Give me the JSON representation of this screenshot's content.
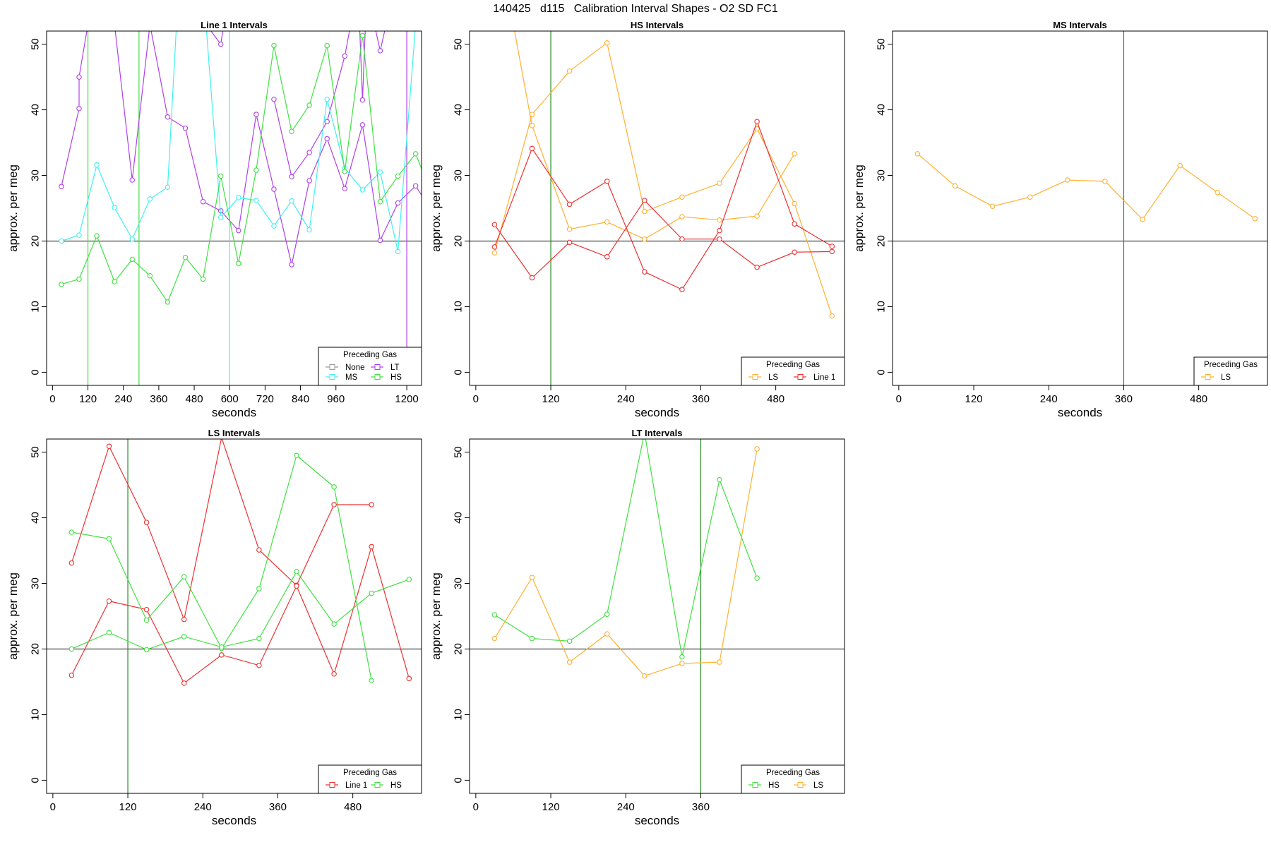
{
  "figure_title": "140425   d115   Calibration Interval Shapes - O2 SD FC1",
  "colors": {
    "None": "#999999",
    "LT": "#b040e8",
    "MS": "#40f0f0",
    "HS": "#40e040",
    "LS": "#ffb030",
    "Line 1": "#ee3030",
    "vline": "#228b22",
    "hline": "#000000"
  },
  "chart_data": [
    {
      "type": "line",
      "title": "Line 1 Intervals",
      "xlabel": "seconds",
      "ylabel": "approx. per meg",
      "xlim": [
        -20,
        1250
      ],
      "ylim": [
        -2,
        52
      ],
      "xticks": [
        0,
        120,
        240,
        360,
        480,
        600,
        720,
        840,
        960,
        1200
      ],
      "yticks": [
        0,
        10,
        20,
        30,
        40,
        50
      ],
      "hline": 20,
      "vlines": [
        {
          "x": 120,
          "color": "HS"
        },
        {
          "x": 293,
          "color": "HS"
        },
        {
          "x": 600,
          "color": "MS"
        },
        {
          "x": 1200,
          "color": "LT"
        }
      ],
      "legend": {
        "title": "Preceding Gas",
        "entries": [
          "None",
          "LT",
          "MS",
          "HS"
        ],
        "columns": 2
      },
      "series": [
        {
          "name": "LT",
          "x": [
            30,
            90,
            90,
            120,
            150,
            210,
            270,
            330,
            390,
            450,
            510,
            570,
            630,
            690,
            750,
            810,
            870,
            930,
            990,
            1050,
            1110,
            1170,
            1230,
            1250
          ],
          "y": [
            28.3,
            40.2,
            45,
            53,
            53,
            53,
            29.3,
            53,
            38.9,
            37.2,
            26,
            24.6,
            21.6,
            39.3,
            27.9,
            16.4,
            29.2,
            35.6,
            28,
            37.7,
            20.1,
            25.8,
            28.4,
            27
          ]
        },
        {
          "name": "LT",
          "x": [
            520,
            570,
            580
          ],
          "y": [
            53,
            50,
            53
          ]
        },
        {
          "name": "LT",
          "x": [
            1090,
            1110,
            1130
          ],
          "y": [
            53,
            49,
            53
          ]
        },
        {
          "name": "LT",
          "x": [
            1040,
            1050,
            1060
          ],
          "y": [
            53,
            41.5,
            53
          ]
        },
        {
          "name": "LT",
          "x": [
            750,
            810,
            870,
            930,
            990,
            1010
          ],
          "y": [
            41.6,
            29.8,
            33.5,
            38.2,
            48.2,
            53
          ]
        },
        {
          "name": "MS",
          "x": [
            30,
            90,
            150,
            210,
            270,
            330,
            390,
            420,
            520,
            570,
            630,
            690,
            750,
            810,
            870,
            930,
            990,
            1050,
            1110,
            1170,
            1230,
            1250
          ],
          "y": [
            20,
            20.9,
            31.6,
            25.1,
            20.3,
            26.4,
            28.2,
            53,
            53,
            23.6,
            26.6,
            26.2,
            22.3,
            26.1,
            21.7,
            41.6,
            31.1,
            27.8,
            30.5,
            18.4,
            53,
            53
          ]
        },
        {
          "name": "HS",
          "x": [
            30,
            90,
            150,
            210,
            270,
            330,
            390,
            450,
            510,
            570,
            630,
            690,
            750,
            810,
            870,
            930,
            990,
            1050,
            1110,
            1170,
            1230,
            1250
          ],
          "y": [
            13.4,
            14.2,
            20.8,
            13.8,
            17.2,
            14.7,
            10.7,
            17.5,
            14.2,
            29.9,
            16.6,
            30.8,
            49.8,
            36.7,
            40.7,
            49.8,
            30.6,
            51.3,
            26,
            29.9,
            33.3,
            31
          ]
        }
      ]
    },
    {
      "type": "line",
      "title": "HS Intervals",
      "xlabel": "seconds",
      "ylabel": "approx. per meg",
      "xlim": [
        -10,
        590
      ],
      "ylim": [
        -2,
        52
      ],
      "xticks": [
        0,
        120,
        240,
        360,
        480
      ],
      "yticks": [
        0,
        10,
        20,
        30,
        40,
        50
      ],
      "hline": 20,
      "vlines": [
        {
          "x": 120,
          "color": "vline"
        }
      ],
      "legend": {
        "title": "Preceding Gas",
        "entries": [
          "LS",
          "Line 1"
        ],
        "columns": 2
      },
      "series": [
        {
          "name": "LS",
          "x": [
            30,
            90,
            150,
            210,
            270,
            330,
            390,
            450,
            510,
            570
          ],
          "y": [
            18.2,
            39.3,
            45.9,
            50.2,
            24.5,
            26.7,
            28.8,
            37.1,
            25.7,
            8.6
          ]
        },
        {
          "name": "LS",
          "x": [
            60,
            90,
            150,
            210,
            270,
            330,
            390,
            450,
            510
          ],
          "y": [
            53,
            37.6,
            21.8,
            22.9,
            20.3,
            23.7,
            23.2,
            23.8,
            33.3
          ]
        },
        {
          "name": "Line 1",
          "x": [
            30,
            90,
            150,
            210,
            270,
            330,
            390,
            450,
            510,
            570
          ],
          "y": [
            22.5,
            14.4,
            19.8,
            17.6,
            26.2,
            20.3,
            20.3,
            16.0,
            18.3,
            18.4
          ]
        },
        {
          "name": "Line 1",
          "x": [
            30,
            90,
            150,
            210,
            270,
            330,
            390,
            450,
            510,
            570
          ],
          "y": [
            19.1,
            34.1,
            25.6,
            29.1,
            15.3,
            12.6,
            21.6,
            38.2,
            22.6,
            19.2
          ]
        }
      ]
    },
    {
      "type": "line",
      "title": "MS Intervals",
      "xlabel": "seconds",
      "ylabel": "approx. per meg",
      "xlim": [
        -10,
        590
      ],
      "ylim": [
        -2,
        52
      ],
      "xticks": [
        0,
        120,
        240,
        360,
        480
      ],
      "yticks": [
        0,
        10,
        20,
        30,
        40,
        50
      ],
      "hline": 20,
      "vlines": [
        {
          "x": 360,
          "color": "vline"
        }
      ],
      "legend": {
        "title": "Preceding Gas",
        "entries": [
          "LS"
        ],
        "columns": 1
      },
      "series": [
        {
          "name": "LS",
          "x": [
            30,
            90,
            150,
            210,
            270,
            330,
            390,
            450,
            510,
            570
          ],
          "y": [
            33.3,
            28.4,
            25.3,
            26.7,
            29.3,
            29.1,
            23.3,
            31.5,
            27.4,
            23.4
          ]
        }
      ]
    },
    {
      "type": "line",
      "title": "LS Intervals",
      "xlabel": "seconds",
      "ylabel": "approx. per meg",
      "xlim": [
        -10,
        590
      ],
      "ylim": [
        -2,
        52
      ],
      "xticks": [
        0,
        120,
        240,
        360,
        480
      ],
      "yticks": [
        0,
        10,
        20,
        30,
        40,
        50
      ],
      "hline": 20,
      "vlines": [
        {
          "x": 120,
          "color": "vline"
        }
      ],
      "legend": {
        "title": "Preceding Gas",
        "entries": [
          "Line 1",
          "HS"
        ],
        "columns": 2
      },
      "series": [
        {
          "name": "Line 1",
          "x": [
            30,
            90,
            150,
            210,
            270,
            330,
            390,
            450,
            510
          ],
          "y": [
            33.1,
            50.9,
            39.3,
            24.5,
            52.2,
            35.1,
            29.7,
            42.0,
            42.0
          ]
        },
        {
          "name": "Line 1",
          "x": [
            30,
            90,
            150,
            210,
            270,
            330,
            390,
            450,
            510,
            570
          ],
          "y": [
            16.0,
            27.3,
            26.0,
            14.8,
            19.1,
            17.5,
            29.6,
            16.2,
            35.6,
            15.5
          ]
        },
        {
          "name": "HS",
          "x": [
            30,
            90,
            150,
            210,
            270,
            330,
            390,
            450,
            510
          ],
          "y": [
            37.8,
            36.8,
            24.4,
            31.0,
            20.1,
            29.2,
            49.5,
            44.7,
            15.2
          ]
        },
        {
          "name": "HS",
          "x": [
            30,
            90,
            150,
            210,
            270,
            330,
            390,
            450,
            510,
            570
          ],
          "y": [
            20.0,
            22.5,
            19.9,
            21.9,
            20.3,
            21.6,
            31.8,
            23.8,
            28.5,
            30.6
          ]
        }
      ]
    },
    {
      "type": "line",
      "title": "LT Intervals",
      "xlabel": "seconds",
      "ylabel": "approx. per meg",
      "xlim": [
        -10,
        590
      ],
      "ylim": [
        -2,
        52
      ],
      "xticks": [
        0,
        120,
        240,
        360
      ],
      "yticks": [
        0,
        10,
        20,
        30,
        40,
        50
      ],
      "hline": 20,
      "vlines": [
        {
          "x": 360,
          "color": "vline"
        }
      ],
      "legend": {
        "title": "Preceding Gas",
        "entries": [
          "HS",
          "LS"
        ],
        "columns": 2
      },
      "series": [
        {
          "name": "HS",
          "x": [
            30,
            90,
            150,
            210,
            270,
            330,
            390,
            450
          ],
          "y": [
            25.2,
            21.6,
            21.2,
            25.3,
            53,
            18.8,
            45.8,
            30.8
          ]
        },
        {
          "name": "LS",
          "x": [
            30,
            90,
            150,
            210,
            270,
            330,
            390,
            450
          ],
          "y": [
            21.6,
            30.9,
            18.0,
            22.3,
            15.9,
            17.8,
            18.0,
            50.5
          ]
        }
      ]
    }
  ]
}
